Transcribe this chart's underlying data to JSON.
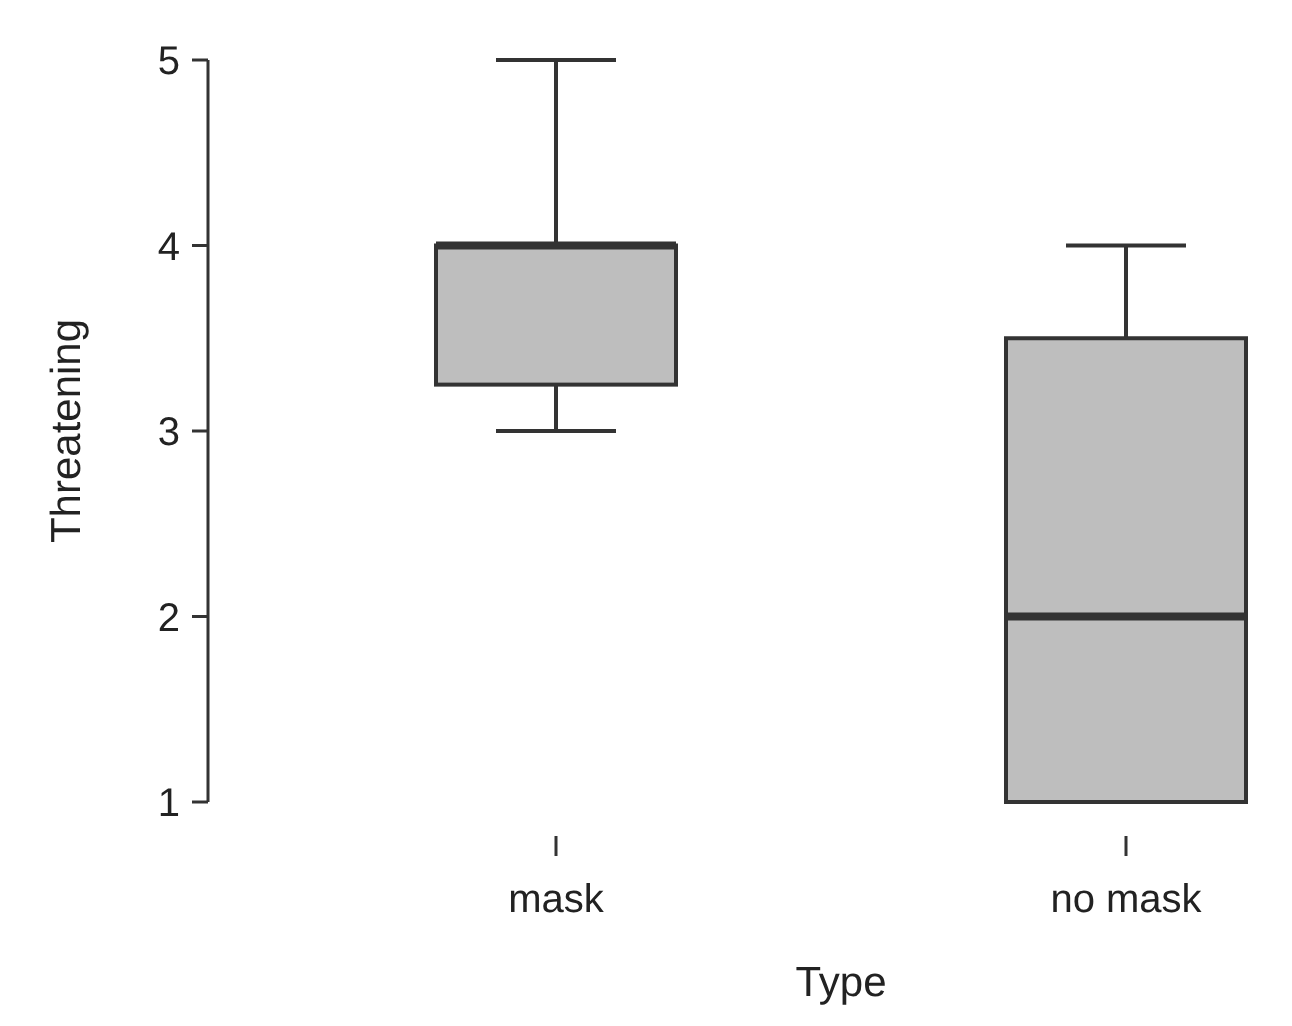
{
  "chart_data": {
    "type": "box",
    "xlabel": "Type",
    "ylabel": "Threatening",
    "categories": [
      "mask",
      "no mask"
    ],
    "boxes": [
      {
        "low": 3,
        "q1": 3.25,
        "median": 4,
        "q3": 4,
        "high": 5
      },
      {
        "low": 1,
        "q1": 1,
        "median": 2,
        "q3": 3.5,
        "high": 4
      }
    ],
    "color": "#bebebe",
    "ylim": [
      1,
      5
    ],
    "yticks": [
      1,
      2,
      3,
      4,
      5
    ],
    "grid": false
  }
}
